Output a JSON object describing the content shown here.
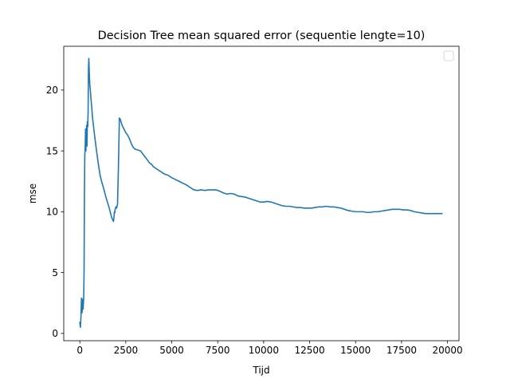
{
  "chart_data": {
    "type": "line",
    "title": "Decision Tree mean squared error (sequentie lengte=10)",
    "xlabel": "Tijd",
    "ylabel": "mse",
    "xlim": [
      -875,
      20625
    ],
    "ylim": [
      -0.6,
      23.6
    ],
    "xticks": [
      0,
      2500,
      5000,
      7500,
      10000,
      12500,
      15000,
      17500,
      20000
    ],
    "yticks": [
      0,
      5,
      10,
      15,
      20
    ],
    "grid": false,
    "legend": {
      "placement": "top-right",
      "entries": []
    },
    "series": [
      {
        "color": "#1f77b4",
        "points": [
          [
            0,
            0.9
          ],
          [
            30,
            0.5
          ],
          [
            60,
            1.3
          ],
          [
            90,
            2.9
          ],
          [
            120,
            1.7
          ],
          [
            150,
            2.8
          ],
          [
            180,
            2.0
          ],
          [
            210,
            2.9
          ],
          [
            230,
            5.1
          ],
          [
            250,
            11.3
          ],
          [
            270,
            14.7
          ],
          [
            290,
            15.2
          ],
          [
            310,
            16.8
          ],
          [
            330,
            15.0
          ],
          [
            350,
            16.6
          ],
          [
            370,
            17.1
          ],
          [
            390,
            15.4
          ],
          [
            410,
            17.4
          ],
          [
            430,
            17.0
          ],
          [
            450,
            18.2
          ],
          [
            470,
            21.8
          ],
          [
            490,
            22.6
          ],
          [
            510,
            21.6
          ],
          [
            530,
            20.8
          ],
          [
            550,
            20.3
          ],
          [
            570,
            20.0
          ],
          [
            600,
            19.4
          ],
          [
            700,
            17.6
          ],
          [
            800,
            16.3
          ],
          [
            900,
            15.1
          ],
          [
            1000,
            14.0
          ],
          [
            1100,
            13.0
          ],
          [
            1200,
            12.4
          ],
          [
            1300,
            11.9
          ],
          [
            1400,
            11.3
          ],
          [
            1500,
            10.8
          ],
          [
            1600,
            10.3
          ],
          [
            1700,
            9.7
          ],
          [
            1750,
            9.45
          ],
          [
            1800,
            9.3
          ],
          [
            1830,
            9.2
          ],
          [
            1860,
            9.6
          ],
          [
            1880,
            10.0
          ],
          [
            1900,
            9.9
          ],
          [
            1920,
            10.2
          ],
          [
            1960,
            10.4
          ],
          [
            2000,
            10.3
          ],
          [
            2050,
            10.6
          ],
          [
            2100,
            13.7
          ],
          [
            2150,
            17.7
          ],
          [
            2200,
            17.6
          ],
          [
            2300,
            17.1
          ],
          [
            2400,
            16.8
          ],
          [
            2500,
            16.5
          ],
          [
            2600,
            16.3
          ],
          [
            2700,
            16.0
          ],
          [
            2800,
            15.6
          ],
          [
            2900,
            15.3
          ],
          [
            3000,
            15.15
          ],
          [
            3100,
            15.1
          ],
          [
            3200,
            15.05
          ],
          [
            3300,
            15.0
          ],
          [
            3400,
            14.8
          ],
          [
            3500,
            14.6
          ],
          [
            3600,
            14.4
          ],
          [
            3700,
            14.2
          ],
          [
            3800,
            14.0
          ],
          [
            3900,
            13.9
          ],
          [
            4000,
            13.7
          ],
          [
            4200,
            13.5
          ],
          [
            4400,
            13.3
          ],
          [
            4600,
            13.1
          ],
          [
            4800,
            13.0
          ],
          [
            5000,
            12.8
          ],
          [
            5200,
            12.65
          ],
          [
            5400,
            12.5
          ],
          [
            5600,
            12.35
          ],
          [
            5800,
            12.2
          ],
          [
            6000,
            12.0
          ],
          [
            6200,
            11.8
          ],
          [
            6400,
            11.75
          ],
          [
            6600,
            11.8
          ],
          [
            6800,
            11.75
          ],
          [
            7000,
            11.8
          ],
          [
            7200,
            11.8
          ],
          [
            7400,
            11.8
          ],
          [
            7600,
            11.7
          ],
          [
            7800,
            11.55
          ],
          [
            8000,
            11.45
          ],
          [
            8200,
            11.5
          ],
          [
            8400,
            11.45
          ],
          [
            8600,
            11.3
          ],
          [
            8800,
            11.25
          ],
          [
            9000,
            11.2
          ],
          [
            9200,
            11.1
          ],
          [
            9400,
            11.0
          ],
          [
            9600,
            10.9
          ],
          [
            9800,
            10.8
          ],
          [
            10000,
            10.8
          ],
          [
            10200,
            10.85
          ],
          [
            10400,
            10.8
          ],
          [
            10600,
            10.7
          ],
          [
            10800,
            10.6
          ],
          [
            11000,
            10.5
          ],
          [
            11200,
            10.45
          ],
          [
            11400,
            10.45
          ],
          [
            11600,
            10.4
          ],
          [
            11800,
            10.35
          ],
          [
            12000,
            10.35
          ],
          [
            12200,
            10.3
          ],
          [
            12400,
            10.3
          ],
          [
            12600,
            10.3
          ],
          [
            12800,
            10.35
          ],
          [
            13000,
            10.4
          ],
          [
            13200,
            10.4
          ],
          [
            13400,
            10.45
          ],
          [
            13600,
            10.4
          ],
          [
            13800,
            10.4
          ],
          [
            14000,
            10.35
          ],
          [
            14200,
            10.3
          ],
          [
            14400,
            10.2
          ],
          [
            14600,
            10.1
          ],
          [
            14800,
            10.05
          ],
          [
            15000,
            10.0
          ],
          [
            15200,
            10.0
          ],
          [
            15400,
            10.0
          ],
          [
            15600,
            9.95
          ],
          [
            15800,
            9.95
          ],
          [
            16000,
            10.0
          ],
          [
            16200,
            10.0
          ],
          [
            16400,
            10.05
          ],
          [
            16600,
            10.1
          ],
          [
            16800,
            10.15
          ],
          [
            17000,
            10.2
          ],
          [
            17200,
            10.2
          ],
          [
            17400,
            10.2
          ],
          [
            17600,
            10.15
          ],
          [
            17800,
            10.15
          ],
          [
            18000,
            10.1
          ],
          [
            18200,
            10.0
          ],
          [
            18400,
            9.95
          ],
          [
            18600,
            9.9
          ],
          [
            18800,
            9.85
          ],
          [
            19000,
            9.85
          ],
          [
            19200,
            9.85
          ],
          [
            19400,
            9.85
          ],
          [
            19700,
            9.85
          ]
        ]
      }
    ]
  }
}
